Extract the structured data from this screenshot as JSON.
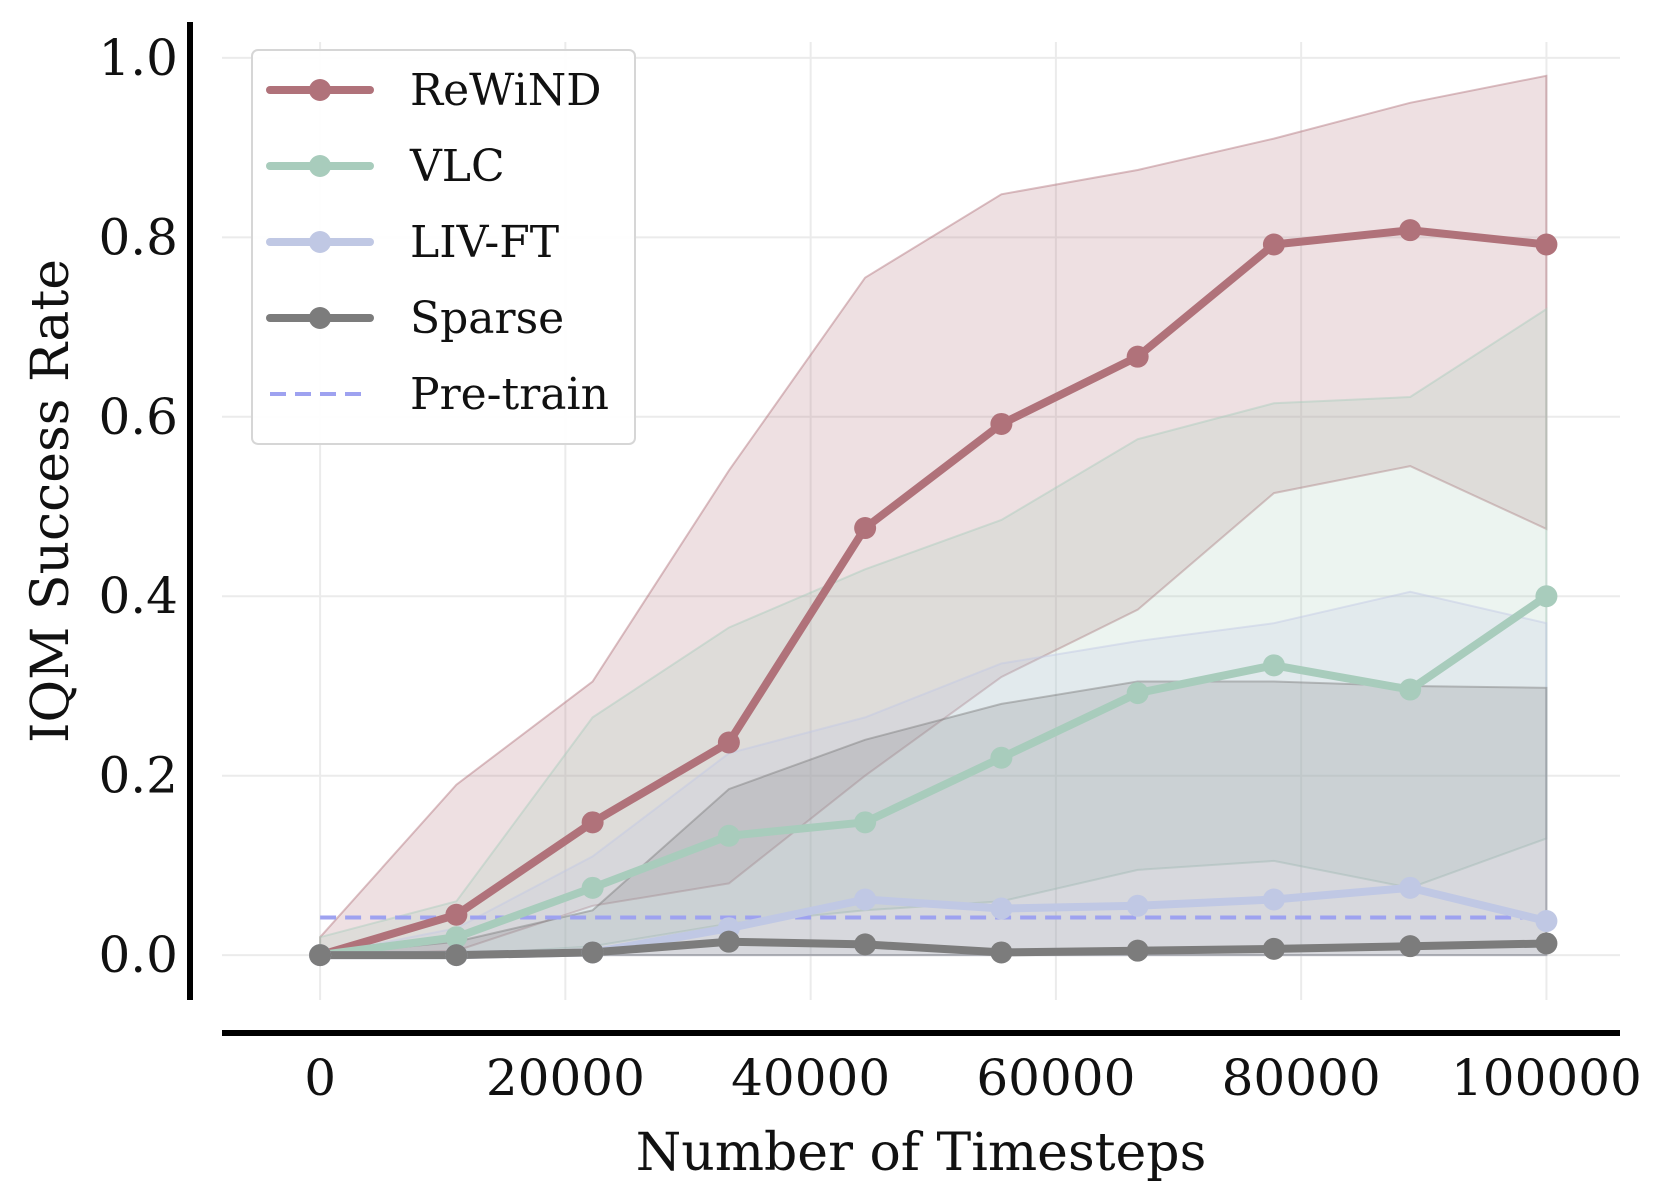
{
  "chart_data": {
    "type": "line",
    "xlabel": "Number of Timesteps",
    "ylabel": "IQM Success Rate",
    "xlim": [
      -8000,
      106000
    ],
    "ylim": [
      -0.05,
      1.04
    ],
    "xticks": [
      0,
      20000,
      40000,
      60000,
      80000,
      100000
    ],
    "yticks": [
      0.0,
      0.2,
      0.4,
      0.6,
      0.8,
      1.0
    ],
    "ytick_labels": [
      "0.0",
      "0.2",
      "0.4",
      "0.6",
      "0.8",
      "1.0"
    ],
    "grid": true,
    "legend_position": "top-left",
    "x": [
      0,
      11111,
      22222,
      33333,
      44444,
      55556,
      66667,
      77778,
      88889,
      100000
    ],
    "series": [
      {
        "name": "ReWiND",
        "color": "#b0727a",
        "values": [
          0.0,
          0.045,
          0.148,
          0.237,
          0.476,
          0.592,
          0.667,
          0.792,
          0.808,
          0.792
        ],
        "lower": [
          0.0,
          0.005,
          0.055,
          0.08,
          0.2,
          0.31,
          0.385,
          0.515,
          0.545,
          0.475
        ],
        "upper": [
          0.02,
          0.19,
          0.305,
          0.54,
          0.755,
          0.848,
          0.875,
          0.91,
          0.95,
          0.98
        ]
      },
      {
        "name": "VLC",
        "color": "#a8ccbc",
        "values": [
          0.0,
          0.02,
          0.075,
          0.133,
          0.148,
          0.22,
          0.292,
          0.323,
          0.296,
          0.4
        ],
        "lower": [
          0.0,
          0.0,
          0.01,
          0.035,
          0.05,
          0.06,
          0.095,
          0.105,
          0.075,
          0.13
        ],
        "upper": [
          0.02,
          0.06,
          0.265,
          0.365,
          0.43,
          0.485,
          0.575,
          0.615,
          0.622,
          0.72
        ]
      },
      {
        "name": "LIV-FT",
        "color": "#c0c8e4",
        "values": [
          0.0,
          0.0,
          0.003,
          0.03,
          0.062,
          0.052,
          0.055,
          0.062,
          0.075,
          0.038
        ],
        "lower": [
          0.0,
          0.0,
          0.0,
          0.0,
          0.0,
          0.0,
          0.0,
          0.0,
          0.0,
          0.0
        ],
        "upper": [
          0.0,
          0.03,
          0.11,
          0.225,
          0.265,
          0.325,
          0.35,
          0.37,
          0.405,
          0.37
        ]
      },
      {
        "name": "Sparse",
        "color": "#7c7c7c",
        "values": [
          0.0,
          0.0,
          0.003,
          0.015,
          0.012,
          0.003,
          0.005,
          0.007,
          0.01,
          0.013
        ],
        "lower": [
          0.0,
          0.0,
          0.0,
          0.0,
          0.0,
          0.0,
          0.0,
          0.0,
          0.0,
          0.0
        ],
        "upper": [
          0.0,
          0.015,
          0.05,
          0.185,
          0.24,
          0.28,
          0.305,
          0.305,
          0.3,
          0.298
        ]
      }
    ],
    "reference_line": {
      "name": "Pre-train",
      "value": 0.042,
      "color": "#9ea2f0",
      "style": "dashed"
    }
  }
}
